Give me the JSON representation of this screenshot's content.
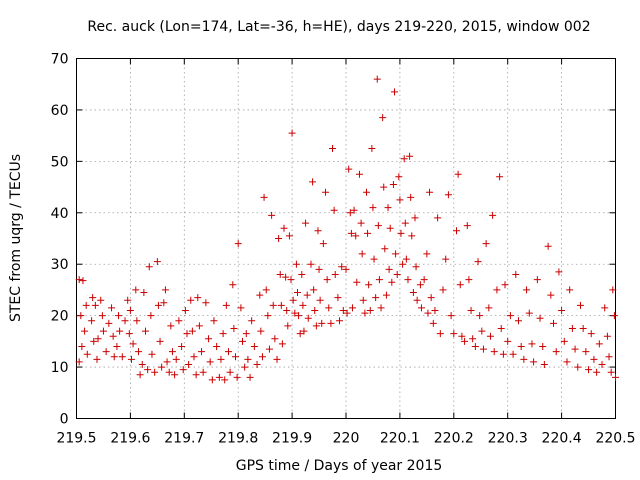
{
  "chart_data": {
    "type": "scatter",
    "title": "Rec. auck (Lon=174, Lat=-36, h=HE), days 219-220, 2015, window 002",
    "xlabel": "GPS time / Days of year 2015",
    "ylabel": "STEC from uqrg / TECUs",
    "xlim": [
      219.5,
      220.5
    ],
    "ylim": [
      0,
      70
    ],
    "xticks": [
      "219.5",
      "219.6",
      "219.7",
      "219.8",
      "219.9",
      "220",
      "220.1",
      "220.2",
      "220.3",
      "220.4",
      "220.5"
    ],
    "yticks": [
      "0",
      "10",
      "20",
      "30",
      "40",
      "50",
      "60",
      "70"
    ],
    "grid": true,
    "marker": "+",
    "color": "#cc0000",
    "series": [
      {
        "name": "STEC",
        "points": [
          [
            219.505,
            27.0
          ],
          [
            219.512,
            26.8
          ],
          [
            219.508,
            20.0
          ],
          [
            219.515,
            17.0
          ],
          [
            219.51,
            14.0
          ],
          [
            219.505,
            11.0
          ],
          [
            219.52,
            12.5
          ],
          [
            219.518,
            22.0
          ],
          [
            219.53,
            23.5
          ],
          [
            219.535,
            22.0
          ],
          [
            219.528,
            19.0
          ],
          [
            219.532,
            15.0
          ],
          [
            219.538,
            11.5
          ],
          [
            219.54,
            15.5
          ],
          [
            219.545,
            23.0
          ],
          [
            219.548,
            20.0
          ],
          [
            219.55,
            17.0
          ],
          [
            219.555,
            13.0
          ],
          [
            219.56,
            18.5
          ],
          [
            219.565,
            21.5
          ],
          [
            219.568,
            16.0
          ],
          [
            219.57,
            12.0
          ],
          [
            219.575,
            14.0
          ],
          [
            219.578,
            20.0
          ],
          [
            219.58,
            17.0
          ],
          [
            219.585,
            12.0
          ],
          [
            219.59,
            19.0
          ],
          [
            219.595,
            23.0
          ],
          [
            219.6,
            21.0
          ],
          [
            219.598,
            16.5
          ],
          [
            219.602,
            11.5
          ],
          [
            219.605,
            14.5
          ],
          [
            219.61,
            25.0
          ],
          [
            219.612,
            19.0
          ],
          [
            219.615,
            13.0
          ],
          [
            219.618,
            8.5
          ],
          [
            219.622,
            10.5
          ],
          [
            219.625,
            24.5
          ],
          [
            219.628,
            17.0
          ],
          [
            219.632,
            9.5
          ],
          [
            219.635,
            29.5
          ],
          [
            219.638,
            20.0
          ],
          [
            219.64,
            12.5
          ],
          [
            219.645,
            9.0
          ],
          [
            219.65,
            30.5
          ],
          [
            219.652,
            22.0
          ],
          [
            219.655,
            15.0
          ],
          [
            219.658,
            10.0
          ],
          [
            219.662,
            22.5
          ],
          [
            219.665,
            25.0
          ],
          [
            219.668,
            11.0
          ],
          [
            219.672,
            9.0
          ],
          [
            219.675,
            18.0
          ],
          [
            219.678,
            13.0
          ],
          [
            219.682,
            8.5
          ],
          [
            219.685,
            11.5
          ],
          [
            219.69,
            19.0
          ],
          [
            219.695,
            14.0
          ],
          [
            219.698,
            9.5
          ],
          [
            219.702,
            21.0
          ],
          [
            219.705,
            16.5
          ],
          [
            219.708,
            10.5
          ],
          [
            219.712,
            23.0
          ],
          [
            219.715,
            17.0
          ],
          [
            219.718,
            12.0
          ],
          [
            219.722,
            8.5
          ],
          [
            219.725,
            23.5
          ],
          [
            219.728,
            18.0
          ],
          [
            219.732,
            13.0
          ],
          [
            219.735,
            9.0
          ],
          [
            219.74,
            22.5
          ],
          [
            219.745,
            15.5
          ],
          [
            219.748,
            11.0
          ],
          [
            219.752,
            7.5
          ],
          [
            219.755,
            19.0
          ],
          [
            219.76,
            14.0
          ],
          [
            219.765,
            8.0
          ],
          [
            219.768,
            11.5
          ],
          [
            219.772,
            16.5
          ],
          [
            219.775,
            7.5
          ],
          [
            219.778,
            22.0
          ],
          [
            219.782,
            13.0
          ],
          [
            219.785,
            9.0
          ],
          [
            219.79,
            26.0
          ],
          [
            219.792,
            17.5
          ],
          [
            219.795,
            12.0
          ],
          [
            219.798,
            8.0
          ],
          [
            219.8,
            34.0
          ],
          [
            219.805,
            21.5
          ],
          [
            219.808,
            15.0
          ],
          [
            219.812,
            10.0
          ],
          [
            219.815,
            16.5
          ],
          [
            219.818,
            11.5
          ],
          [
            219.822,
            8.0
          ],
          [
            219.825,
            19.0
          ],
          [
            219.83,
            14.0
          ],
          [
            219.835,
            10.5
          ],
          [
            219.84,
            24.0
          ],
          [
            219.842,
            17.0
          ],
          [
            219.845,
            12.0
          ],
          [
            219.848,
            43.0
          ],
          [
            219.852,
            25.0
          ],
          [
            219.855,
            20.0
          ],
          [
            219.858,
            13.5
          ],
          [
            219.862,
            39.5
          ],
          [
            219.865,
            22.0
          ],
          [
            219.868,
            15.5
          ],
          [
            219.872,
            11.5
          ],
          [
            219.875,
            35.0
          ],
          [
            219.878,
            28.0
          ],
          [
            219.88,
            22.0
          ],
          [
            219.882,
            14.5
          ],
          [
            219.885,
            37.0
          ],
          [
            219.888,
            27.5
          ],
          [
            219.89,
            21.0
          ],
          [
            219.892,
            18.0
          ],
          [
            219.895,
            35.5
          ],
          [
            219.898,
            27.0
          ],
          [
            219.9,
            55.5
          ],
          [
            219.902,
            23.0
          ],
          [
            219.905,
            20.5
          ],
          [
            219.908,
            30.0
          ],
          [
            219.91,
            24.5
          ],
          [
            219.912,
            20.0
          ],
          [
            219.915,
            16.5
          ],
          [
            219.918,
            28.0
          ],
          [
            219.92,
            22.0
          ],
          [
            219.922,
            17.0
          ],
          [
            219.925,
            38.0
          ],
          [
            219.928,
            24.0
          ],
          [
            219.93,
            19.5
          ],
          [
            219.935,
            30.0
          ],
          [
            219.938,
            46.0
          ],
          [
            219.94,
            25.0
          ],
          [
            219.942,
            21.0
          ],
          [
            219.945,
            18.0
          ],
          [
            219.948,
            36.5
          ],
          [
            219.95,
            29.0
          ],
          [
            219.952,
            23.0
          ],
          [
            219.955,
            18.5
          ],
          [
            219.958,
            34.0
          ],
          [
            219.962,
            44.0
          ],
          [
            219.965,
            27.0
          ],
          [
            219.968,
            21.5
          ],
          [
            219.972,
            18.5
          ],
          [
            219.975,
            52.5
          ],
          [
            219.978,
            40.5
          ],
          [
            219.98,
            28.0
          ],
          [
            219.985,
            23.5
          ],
          [
            219.988,
            19.0
          ],
          [
            219.992,
            29.5
          ],
          [
            219.995,
            21.0
          ],
          [
            220.0,
            29.0
          ],
          [
            220.002,
            20.5
          ],
          [
            220.005,
            48.5
          ],
          [
            220.008,
            40.0
          ],
          [
            220.01,
            36.0
          ],
          [
            220.012,
            21.5
          ],
          [
            220.015,
            40.5
          ],
          [
            220.018,
            35.5
          ],
          [
            220.02,
            26.5
          ],
          [
            220.025,
            47.5
          ],
          [
            220.028,
            38.0
          ],
          [
            220.03,
            32.0
          ],
          [
            220.032,
            23.0
          ],
          [
            220.035,
            20.5
          ],
          [
            220.038,
            44.0
          ],
          [
            220.04,
            36.0
          ],
          [
            220.042,
            26.0
          ],
          [
            220.045,
            21.0
          ],
          [
            220.048,
            52.5
          ],
          [
            220.05,
            41.0
          ],
          [
            220.052,
            31.0
          ],
          [
            220.055,
            23.5
          ],
          [
            220.058,
            66.0
          ],
          [
            220.06,
            37.5
          ],
          [
            220.062,
            27.0
          ],
          [
            220.065,
            21.5
          ],
          [
            220.068,
            58.5
          ],
          [
            220.07,
            45.0
          ],
          [
            220.072,
            33.0
          ],
          [
            220.075,
            24.0
          ],
          [
            220.078,
            41.0
          ],
          [
            220.08,
            29.0
          ],
          [
            220.082,
            37.0
          ],
          [
            220.085,
            26.5
          ],
          [
            220.088,
            45.5
          ],
          [
            220.09,
            63.5
          ],
          [
            220.092,
            32.0
          ],
          [
            220.095,
            28.0
          ],
          [
            220.098,
            47.0
          ],
          [
            220.1,
            42.5
          ],
          [
            220.102,
            36.0
          ],
          [
            220.105,
            30.0
          ],
          [
            220.108,
            50.5
          ],
          [
            220.11,
            38.0
          ],
          [
            220.112,
            31.0
          ],
          [
            220.115,
            27.0
          ],
          [
            220.118,
            51.0
          ],
          [
            220.12,
            43.0
          ],
          [
            220.122,
            35.5
          ],
          [
            220.125,
            24.5
          ],
          [
            220.128,
            39.0
          ],
          [
            220.13,
            29.5
          ],
          [
            220.132,
            23.0
          ],
          [
            220.138,
            26.0
          ],
          [
            220.14,
            21.5
          ],
          [
            220.145,
            27.0
          ],
          [
            220.15,
            32.0
          ],
          [
            220.152,
            20.5
          ],
          [
            220.155,
            44.0
          ],
          [
            220.158,
            23.5
          ],
          [
            220.162,
            18.5
          ],
          [
            220.165,
            21.0
          ],
          [
            220.17,
            39.0
          ],
          [
            220.175,
            16.5
          ],
          [
            220.18,
            25.0
          ],
          [
            220.185,
            31.0
          ],
          [
            220.19,
            43.5
          ],
          [
            220.195,
            20.0
          ],
          [
            220.2,
            16.5
          ],
          [
            220.205,
            36.5
          ],
          [
            220.208,
            47.5
          ],
          [
            220.212,
            26.0
          ],
          [
            220.215,
            16.0
          ],
          [
            220.22,
            15.0
          ],
          [
            220.225,
            37.5
          ],
          [
            220.228,
            27.0
          ],
          [
            220.232,
            21.0
          ],
          [
            220.235,
            15.5
          ],
          [
            220.24,
            14.0
          ],
          [
            220.245,
            30.5
          ],
          [
            220.248,
            20.0
          ],
          [
            220.252,
            17.0
          ],
          [
            220.255,
            13.5
          ],
          [
            220.26,
            34.0
          ],
          [
            220.265,
            21.5
          ],
          [
            220.268,
            16.0
          ],
          [
            220.272,
            39.5
          ],
          [
            220.275,
            13.0
          ],
          [
            220.28,
            25.0
          ],
          [
            220.285,
            47.0
          ],
          [
            220.288,
            17.5
          ],
          [
            220.292,
            12.5
          ],
          [
            220.295,
            26.0
          ],
          [
            220.3,
            15.0
          ],
          [
            220.305,
            20.0
          ],
          [
            220.31,
            12.5
          ],
          [
            220.315,
            28.0
          ],
          [
            220.32,
            19.0
          ],
          [
            220.325,
            14.0
          ],
          [
            220.33,
            11.5
          ],
          [
            220.335,
            25.0
          ],
          [
            220.34,
            20.5
          ],
          [
            220.345,
            14.5
          ],
          [
            220.348,
            11.0
          ],
          [
            220.355,
            27.0
          ],
          [
            220.36,
            19.5
          ],
          [
            220.365,
            14.0
          ],
          [
            220.368,
            10.5
          ],
          [
            220.375,
            33.5
          ],
          [
            220.38,
            24.0
          ],
          [
            220.385,
            18.5
          ],
          [
            220.39,
            13.0
          ],
          [
            220.395,
            28.5
          ],
          [
            220.4,
            21.0
          ],
          [
            220.405,
            15.0
          ],
          [
            220.41,
            11.0
          ],
          [
            220.415,
            25.0
          ],
          [
            220.42,
            17.5
          ],
          [
            220.425,
            13.5
          ],
          [
            220.43,
            10.0
          ],
          [
            220.435,
            22.0
          ],
          [
            220.44,
            17.5
          ],
          [
            220.445,
            13.0
          ],
          [
            220.45,
            9.5
          ],
          [
            220.455,
            16.5
          ],
          [
            220.46,
            11.5
          ],
          [
            220.465,
            9.0
          ],
          [
            220.47,
            14.5
          ],
          [
            220.475,
            10.5
          ],
          [
            220.48,
            21.5
          ],
          [
            220.485,
            16.0
          ],
          [
            220.488,
            12.0
          ],
          [
            220.492,
            9.0
          ],
          [
            220.495,
            25.0
          ],
          [
            220.498,
            20.0
          ],
          [
            220.5,
            8.0
          ]
        ]
      }
    ]
  }
}
